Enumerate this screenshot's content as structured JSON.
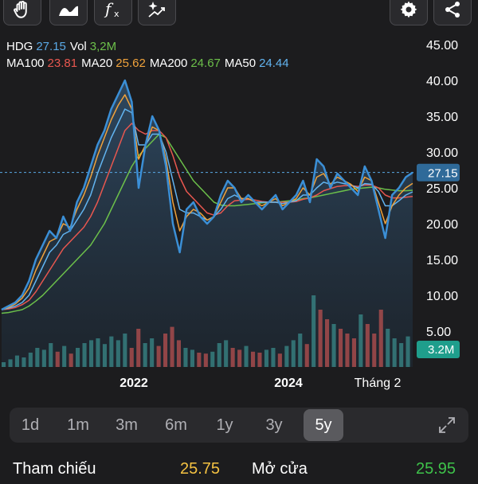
{
  "toolbar": {
    "left_tools": [
      {
        "icon": "hand-icon",
        "label": ""
      },
      {
        "icon": "area-chart-icon",
        "label": ""
      },
      {
        "icon": "function-icon",
        "label": ""
      },
      {
        "icon": "sparkle-chart-icon",
        "label": ""
      }
    ],
    "right_tools": [
      {
        "icon": "gear-icon"
      },
      {
        "icon": "share-icon"
      }
    ]
  },
  "legend": {
    "symbol": "HDG",
    "price": "27.15",
    "vol_label": "Vol",
    "vol_value": "3,2M",
    "ma": [
      {
        "name": "MA100",
        "value": "23.81",
        "color": "#e8574f"
      },
      {
        "name": "MA20",
        "value": "25.62",
        "color": "#f0a23b"
      },
      {
        "name": "MA200",
        "value": "24.67",
        "color": "#6cc04a"
      },
      {
        "name": "MA50",
        "value": "24.44",
        "color": "#62b4f0"
      }
    ],
    "symbol_color": "#ffffff",
    "price_color": "#5aa9e6"
  },
  "chart_data": {
    "type": "line",
    "y_axis_ticks": [
      "45.00",
      "40.00",
      "35.00",
      "30.00",
      "25.00",
      "20.00",
      "15.00",
      "10.00",
      "5.00"
    ],
    "ylim": [
      0,
      45
    ],
    "x_axis_ticks": [
      "2022",
      "2024",
      "Tháng 2"
    ],
    "last_price_label": "27.15",
    "last_price": 27.15,
    "volume_label": "3.2M",
    "series": [
      {
        "name": "HDG",
        "color": "#3b8fd6",
        "values": [
          8,
          8.5,
          9,
          10,
          12,
          15,
          17,
          19,
          18,
          21,
          19,
          23,
          25,
          28,
          31,
          33,
          36,
          38,
          40,
          37,
          25,
          31,
          35,
          33,
          28,
          20,
          16,
          22,
          23,
          21,
          20,
          21,
          24,
          26,
          25,
          23,
          24,
          23,
          22,
          23,
          24,
          22,
          23,
          24,
          26,
          23,
          29,
          28,
          25,
          27,
          26,
          25,
          24,
          28,
          26,
          22,
          18,
          24,
          25,
          26.5,
          27.15
        ]
      },
      {
        "name": "MA20",
        "color": "#f0a23b",
        "values": [
          8,
          8.3,
          8.8,
          9.6,
          11,
          13.5,
          15.5,
          17.5,
          18,
          20,
          19.5,
          22,
          24,
          26.5,
          29.5,
          32,
          34.5,
          36.5,
          38,
          36,
          29,
          31,
          33.5,
          33,
          29,
          23,
          19,
          21,
          22,
          21.5,
          20.5,
          21,
          23,
          25,
          25,
          23.5,
          23.5,
          23,
          22.5,
          23,
          23.5,
          22.5,
          23,
          23.5,
          25,
          24,
          26.5,
          27,
          25.5,
          26.5,
          26,
          25.5,
          24.5,
          26.5,
          26,
          23,
          20,
          22.5,
          24,
          25,
          25.62
        ]
      },
      {
        "name": "MA50",
        "color": "#62b4f0",
        "values": [
          8,
          8.2,
          8.5,
          9,
          10,
          12,
          14,
          16,
          17,
          18.5,
          19,
          20.5,
          22,
          24,
          27,
          29.5,
          32,
          34,
          36,
          35.5,
          31,
          31,
          32.5,
          32.5,
          30,
          26,
          22,
          21.5,
          21.5,
          21,
          20.5,
          21,
          22,
          23.5,
          24,
          23.5,
          23.5,
          23,
          23,
          23,
          23,
          22.8,
          23,
          23.2,
          24,
          24,
          25,
          25.8,
          25.5,
          25.8,
          25.6,
          25.4,
          25,
          25.6,
          25.5,
          24.5,
          22.5,
          22.5,
          23.2,
          24,
          24.44
        ]
      },
      {
        "name": "MA100",
        "color": "#e8574f",
        "values": [
          8,
          8.1,
          8.3,
          8.7,
          9.3,
          10.5,
          12,
          13.5,
          15,
          16.5,
          17.5,
          18.5,
          19.5,
          21,
          23,
          25.5,
          28,
          30.5,
          33,
          34,
          33,
          32.5,
          33,
          33,
          32,
          29.5,
          26.5,
          24.5,
          23.5,
          22.5,
          21.5,
          21.2,
          21.5,
          22.5,
          23.2,
          23.3,
          23.4,
          23.3,
          23.1,
          23,
          23,
          23,
          23,
          23.1,
          23.4,
          23.6,
          24,
          24.6,
          24.9,
          25.2,
          25.3,
          25.3,
          25.2,
          25.4,
          25.4,
          25,
          24,
          23.6,
          23.6,
          23.7,
          23.81
        ]
      },
      {
        "name": "MA200",
        "color": "#6cc04a",
        "values": [
          7.5,
          7.6,
          7.8,
          8,
          8.5,
          9.2,
          10,
          11,
          12,
          13,
          14,
          15,
          16,
          17,
          18.5,
          20,
          22,
          24,
          26,
          28,
          29.5,
          30.5,
          31.5,
          32.5,
          32,
          30.5,
          29,
          27.5,
          26,
          25,
          24,
          23,
          22.6,
          22.5,
          22.5,
          22.6,
          22.7,
          22.8,
          22.9,
          23,
          23,
          23.1,
          23.2,
          23.3,
          23.5,
          23.6,
          23.8,
          24,
          24.2,
          24.4,
          24.6,
          24.8,
          24.9,
          25,
          25.1,
          25,
          24.8,
          24.7,
          24.6,
          24.6,
          24.67
        ]
      }
    ],
    "volume": [
      0.5,
      0.8,
      1.2,
      1.0,
      1.5,
      2.0,
      1.8,
      2.5,
      1.6,
      2.2,
      1.4,
      2.0,
      2.5,
      2.8,
      3.0,
      2.4,
      3.2,
      2.8,
      3.5,
      2.0,
      4.0,
      2.5,
      3.0,
      2.2,
      3.5,
      4.2,
      2.8,
      2.0,
      1.8,
      1.5,
      1.4,
      1.6,
      2.5,
      2.8,
      2.0,
      1.8,
      2.2,
      1.6,
      1.5,
      1.8,
      2.0,
      1.4,
      2.2,
      2.8,
      3.5,
      2.4,
      7.5,
      6.0,
      5.0,
      4.5,
      4.0,
      3.5,
      3.0,
      5.5,
      4.5,
      3.5,
      6.0,
      4.0,
      3.0,
      2.5,
      3.2
    ]
  },
  "periods": {
    "items": [
      "1d",
      "1m",
      "3m",
      "6m",
      "1y",
      "3y",
      "5y"
    ],
    "active": "5y",
    "expand_icon": "expand-icon"
  },
  "stats": {
    "ref_label": "Tham chiếu",
    "ref_value": "25.75",
    "ref_color": "#f5c242",
    "open_label": "Mở cửa",
    "open_value": "25.95",
    "open_color": "#3ec24a"
  }
}
